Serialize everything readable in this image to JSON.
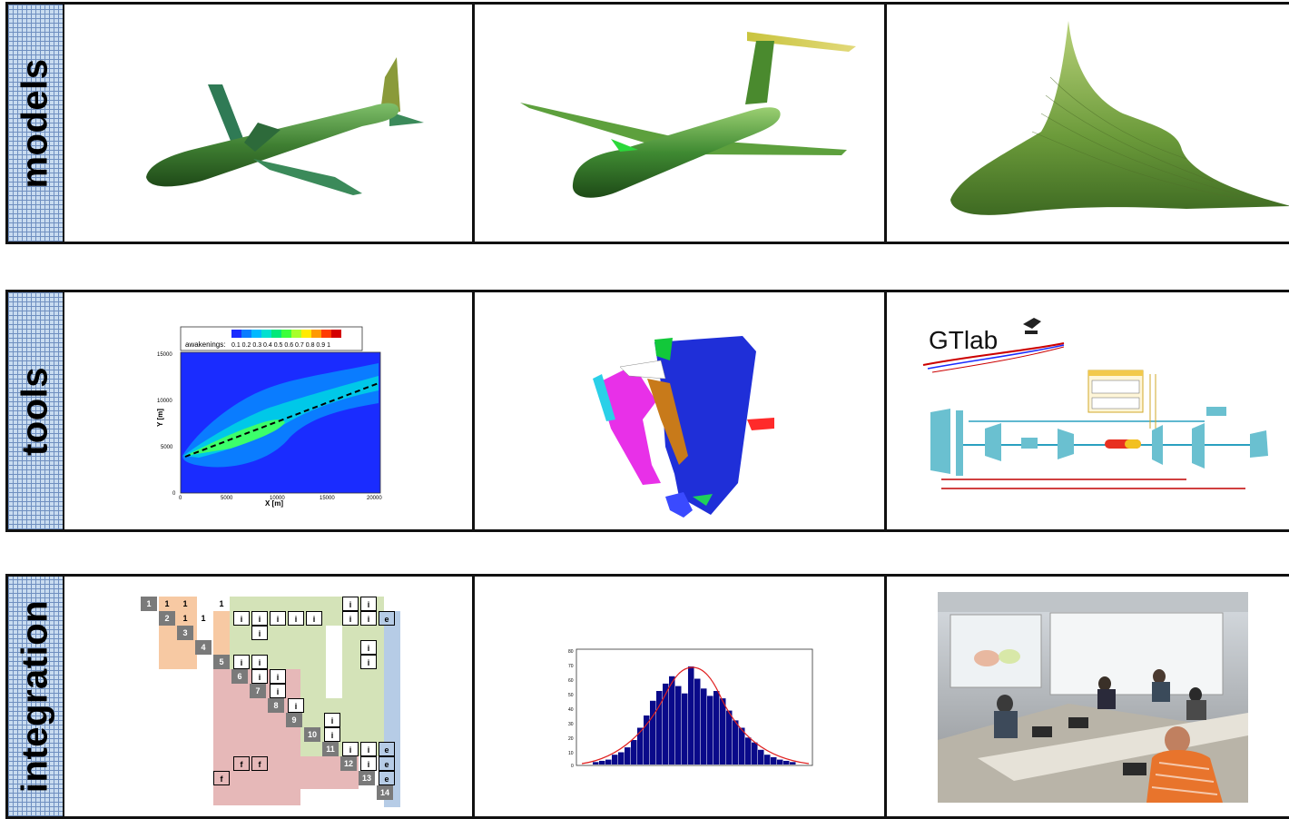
{
  "rows": [
    {
      "label": "models"
    },
    {
      "label": "tools"
    },
    {
      "label": "integration"
    }
  ],
  "colors": {
    "aircraft_green": "#4e8f3a",
    "label_blue": "#c9dcf0",
    "border": "#111111"
  },
  "contour": {
    "legend_title": "awakenings:",
    "legend_ticks": "0.1 0.2 0.3 0.4 0.5 0.6 0.7 0.8 0.9  1",
    "xlabel": "X [m]",
    "ylabel": "Y [m]",
    "xticks": [
      "0",
      "5000",
      "10000",
      "15000",
      "20000"
    ],
    "yticks": [
      "15000",
      "10000",
      "5000",
      "0"
    ]
  },
  "gtlab": {
    "logo_text": "GTlab"
  },
  "dsm": {
    "diag": [
      "1",
      "2",
      "3",
      "4",
      "5",
      "6",
      "7",
      "8",
      "9",
      "10",
      "11",
      "12",
      "13",
      "14"
    ],
    "marks": {
      "i": "i",
      "e": "e",
      "f": "f",
      "one": "1"
    }
  },
  "histogram": {
    "yticks": [
      "80",
      "70",
      "60",
      "50",
      "40",
      "30",
      "20",
      "10",
      "0"
    ]
  }
}
